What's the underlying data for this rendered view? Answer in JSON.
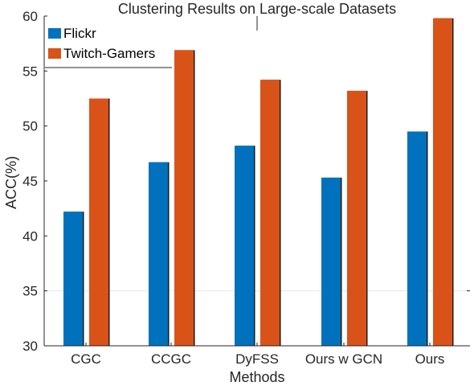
{
  "chart_data": {
    "type": "bar",
    "title": "Clustering Results on Large-scale Datasets",
    "xlabel": "Methods",
    "ylabel": "ACC(%)",
    "ylim": [
      30,
      60
    ],
    "yticks": [
      30,
      35,
      40,
      45,
      50,
      55,
      60
    ],
    "grid": "horizontal line at 35 only",
    "legend_position": "top-left",
    "categories": [
      "CGC",
      "CCGC",
      "DyFSS",
      "Ours w GCN",
      "Ours"
    ],
    "series": [
      {
        "name": "Flickr",
        "color": "#0072BD",
        "values": [
          42.2,
          46.7,
          48.2,
          45.3,
          49.5
        ]
      },
      {
        "name": "Twitch-Gamers",
        "color": "#D95319",
        "values": [
          52.5,
          56.9,
          54.2,
          53.2,
          59.8
        ]
      }
    ]
  }
}
